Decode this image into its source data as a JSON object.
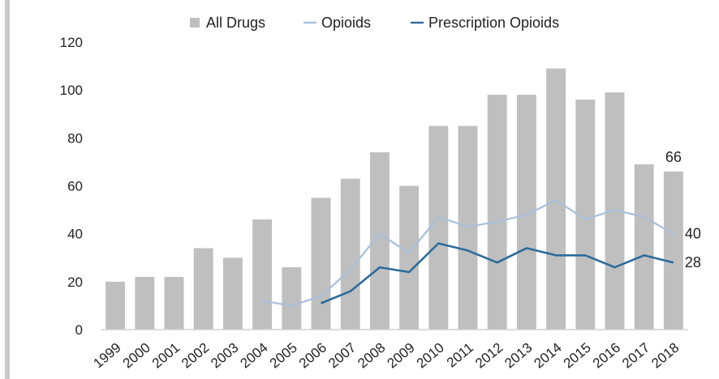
{
  "chart_data": {
    "type": "bar",
    "title": "",
    "xlabel": "",
    "ylabel": "",
    "ylim": [
      0,
      120
    ],
    "yticks": [
      0,
      20,
      40,
      60,
      80,
      100,
      120
    ],
    "grid": false,
    "legend_position": "top",
    "categories": [
      "1999",
      "2000",
      "2001",
      "2002",
      "2003",
      "2004",
      "2005",
      "2006",
      "2007",
      "2008",
      "2009",
      "2010",
      "2011",
      "2012",
      "2013",
      "2014",
      "2015",
      "2016",
      "2017",
      "2018"
    ],
    "series": [
      {
        "name": "All Drugs",
        "kind": "bar",
        "color": "#bfbfbf",
        "values": [
          20,
          22,
          22,
          34,
          30,
          46,
          26,
          55,
          63,
          74,
          60,
          85,
          85,
          98,
          98,
          109,
          96,
          99,
          69,
          66
        ]
      },
      {
        "name": "Opioids",
        "kind": "line",
        "color": "#a9bfdc",
        "values": [
          null,
          null,
          null,
          null,
          null,
          12,
          10,
          14,
          25,
          40,
          32,
          47,
          43,
          45,
          48,
          54,
          46,
          50,
          47,
          40
        ]
      },
      {
        "name": "Prescription Opioids",
        "kind": "line",
        "color": "#2c6c9c",
        "values": [
          null,
          null,
          null,
          null,
          null,
          null,
          null,
          11,
          16,
          26,
          24,
          36,
          33,
          28,
          34,
          31,
          31,
          26,
          31,
          28
        ]
      }
    ],
    "end_labels": [
      {
        "series": "All Drugs",
        "text": "66"
      },
      {
        "series": "Opioids",
        "text": "40"
      },
      {
        "series": "Prescription Opioids",
        "text": "28"
      }
    ]
  }
}
